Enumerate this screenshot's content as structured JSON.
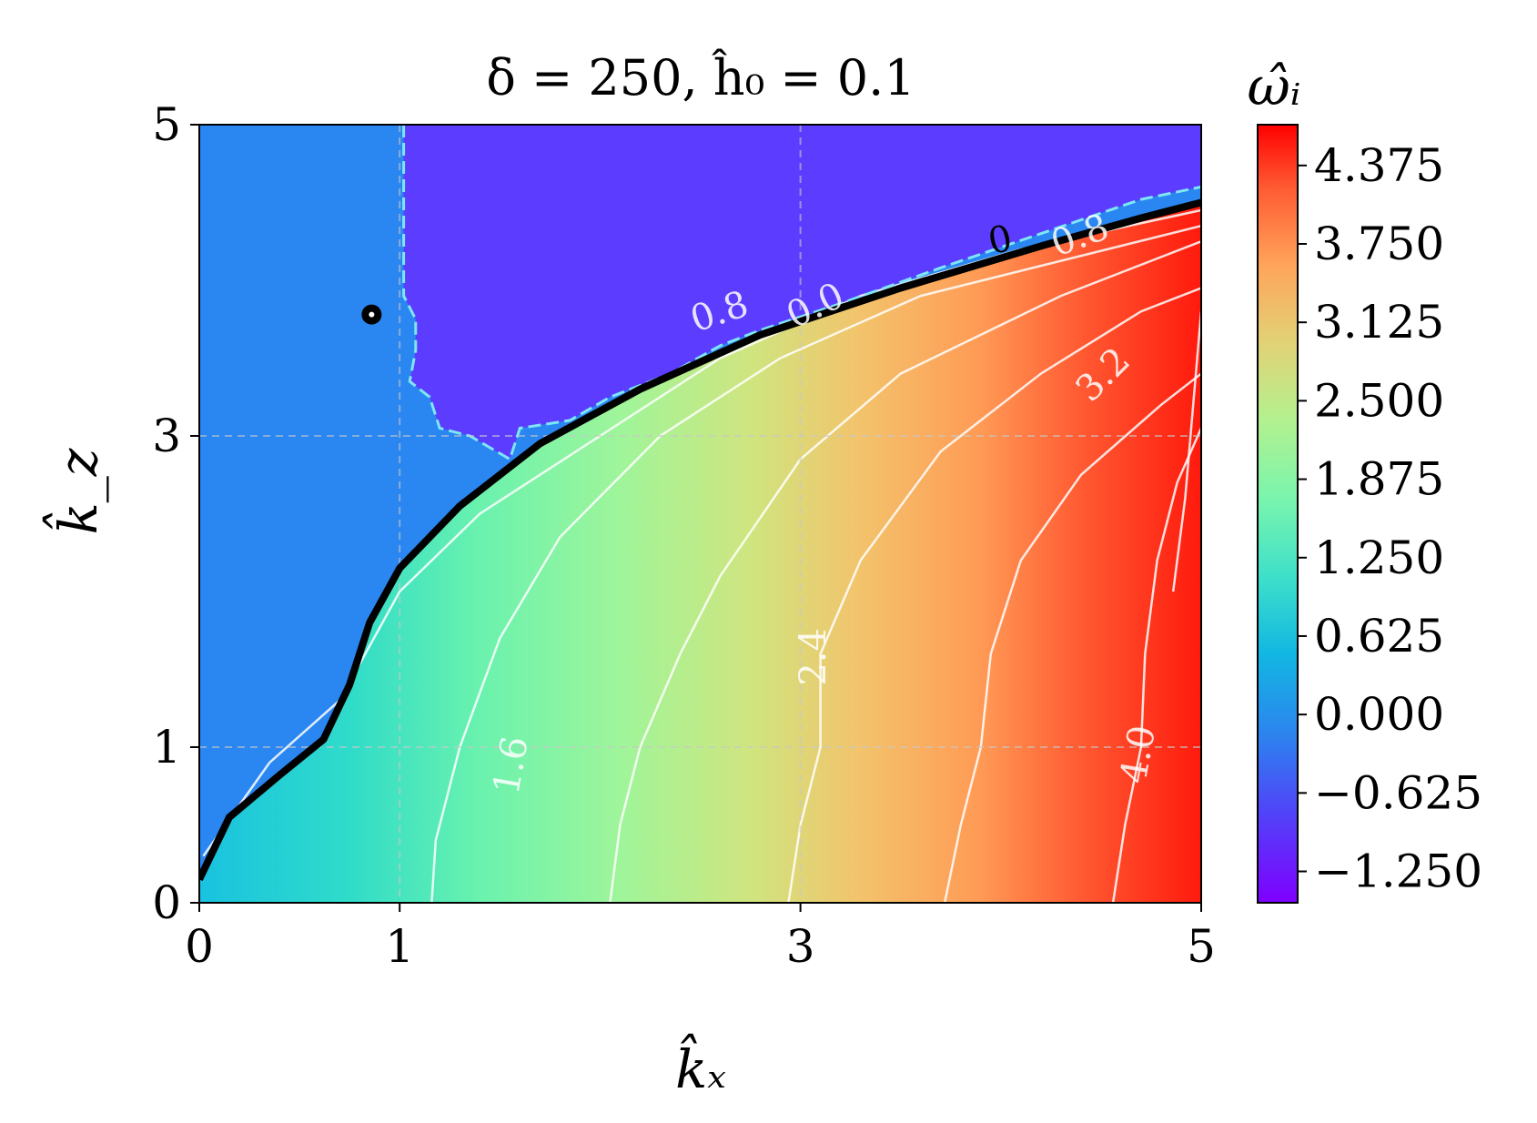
{
  "chart_data": {
    "type": "heatmap",
    "title": "δ = 250, ĥ₀ = 0.1",
    "xlabel": "k̂ₓ",
    "ylabel": "k̂_z",
    "colorbar_label": "ω̂ᵢ",
    "colormap": "rainbow",
    "xlim": [
      0,
      5
    ],
    "ylim": [
      0,
      5
    ],
    "x_ticks": [
      0,
      1,
      3,
      5
    ],
    "y_ticks": [
      0,
      1,
      3,
      5
    ],
    "grid": true,
    "color_range": [
      -1.5,
      4.7
    ],
    "colorbar_ticks": [
      "4.375",
      "3.750",
      "3.125",
      "2.500",
      "1.875",
      "1.250",
      "0.625",
      "0.000",
      "−0.625",
      "−1.250"
    ],
    "colorbar_tick_values": [
      4.375,
      3.75,
      3.125,
      2.5,
      1.875,
      1.25,
      0.625,
      0.0,
      -0.625,
      -1.25
    ],
    "contour_levels": [
      -0.8,
      0.0,
      0.8,
      1.6,
      2.4,
      3.2,
      4.0
    ],
    "contour_labels": [
      {
        "text": "0.8",
        "x": 2.6,
        "y": 3.78,
        "angle": -18,
        "level": 0.8
      },
      {
        "text": "0.0",
        "x": 3.08,
        "y": 3.82,
        "angle": -25,
        "level": 0.0
      },
      {
        "text": "0",
        "x": 4.0,
        "y": 4.24,
        "angle": -12,
        "level": 0.0
      },
      {
        "text": "0.8",
        "x": 4.4,
        "y": 4.27,
        "angle": -20,
        "level": 0.8
      },
      {
        "text": "1.6",
        "x": 1.57,
        "y": 0.88,
        "angle": -80,
        "level": 1.6
      },
      {
        "text": "2.4",
        "x": 3.08,
        "y": 1.58,
        "angle": -90,
        "level": 2.4
      },
      {
        "text": "3.2",
        "x": 4.52,
        "y": 3.38,
        "angle": -45,
        "level": 3.2
      },
      {
        "text": "4.0",
        "x": 4.7,
        "y": 0.95,
        "angle": -80,
        "level": 4.0
      }
    ],
    "zero_contour": [
      [
        0.0,
        0.15
      ],
      [
        0.15,
        0.55
      ],
      [
        0.4,
        0.82
      ],
      [
        0.62,
        1.05
      ],
      [
        0.75,
        1.4
      ],
      [
        0.85,
        1.8
      ],
      [
        1.0,
        2.15
      ],
      [
        1.3,
        2.55
      ],
      [
        1.7,
        2.95
      ],
      [
        2.2,
        3.3
      ],
      [
        2.8,
        3.65
      ],
      [
        3.5,
        3.95
      ],
      [
        4.2,
        4.22
      ],
      [
        4.7,
        4.4
      ],
      [
        5.0,
        4.5
      ]
    ],
    "isolines": [
      {
        "level": 0.8,
        "points": [
          [
            0.02,
            0.3
          ],
          [
            0.35,
            0.9
          ],
          [
            0.7,
            1.3
          ],
          [
            1.0,
            2.0
          ],
          [
            1.4,
            2.5
          ],
          [
            2.0,
            3.0
          ],
          [
            2.6,
            3.5
          ],
          [
            3.3,
            3.9
          ],
          [
            4.1,
            4.2
          ],
          [
            5.0,
            4.45
          ]
        ]
      },
      {
        "level": 1.6,
        "points": [
          [
            1.16,
            0.0
          ],
          [
            1.18,
            0.4
          ],
          [
            1.3,
            1.0
          ],
          [
            1.5,
            1.7
          ],
          [
            1.8,
            2.35
          ],
          [
            2.3,
            3.0
          ],
          [
            2.9,
            3.5
          ],
          [
            3.6,
            3.9
          ],
          [
            5.0,
            4.35
          ]
        ]
      },
      {
        "level": 2.4,
        "points": [
          [
            2.05,
            0.0
          ],
          [
            2.1,
            0.5
          ],
          [
            2.2,
            1.0
          ],
          [
            2.4,
            1.6
          ],
          [
            2.6,
            2.1
          ],
          [
            3.0,
            2.85
          ],
          [
            3.5,
            3.4
          ],
          [
            4.3,
            3.9
          ],
          [
            5.0,
            4.25
          ]
        ]
      },
      {
        "level": 3.2,
        "points": [
          [
            2.94,
            0.0
          ],
          [
            3.0,
            0.5
          ],
          [
            3.1,
            1.0
          ],
          [
            3.1,
            1.6
          ],
          [
            3.3,
            2.2
          ],
          [
            3.7,
            2.9
          ],
          [
            4.2,
            3.4
          ],
          [
            4.7,
            3.8
          ],
          [
            5.0,
            3.95
          ]
        ]
      },
      {
        "level": 4.0,
        "points": [
          [
            3.72,
            0.0
          ],
          [
            3.8,
            0.5
          ],
          [
            3.9,
            1.0
          ],
          [
            3.95,
            1.6
          ],
          [
            4.1,
            2.2
          ],
          [
            4.4,
            2.75
          ],
          [
            4.8,
            3.2
          ],
          [
            5.0,
            3.4
          ]
        ]
      },
      {
        "level": 4.4,
        "points": [
          [
            4.56,
            0.0
          ],
          [
            4.62,
            0.5
          ],
          [
            4.7,
            1.0
          ],
          [
            4.72,
            1.6
          ],
          [
            4.78,
            2.2
          ],
          [
            4.88,
            2.7
          ],
          [
            5.0,
            3.05
          ]
        ]
      },
      {
        "level": 4.6,
        "points": [
          [
            4.86,
            2.0
          ],
          [
            4.92,
            2.6
          ],
          [
            5.0,
            3.8
          ]
        ]
      }
    ],
    "dashed_contour": [
      [
        1.02,
        5.0
      ],
      [
        1.02,
        3.9
      ],
      [
        1.08,
        3.75
      ],
      [
        1.08,
        3.55
      ],
      [
        1.05,
        3.35
      ],
      [
        1.15,
        3.25
      ],
      [
        1.2,
        3.05
      ],
      [
        1.35,
        3.0
      ],
      [
        1.55,
        2.85
      ],
      [
        1.6,
        3.05
      ],
      [
        1.85,
        3.1
      ],
      [
        2.05,
        3.25
      ],
      [
        2.35,
        3.4
      ],
      [
        2.6,
        3.58
      ],
      [
        2.8,
        3.68
      ],
      [
        3.2,
        3.85
      ],
      [
        3.7,
        4.08
      ],
      [
        4.2,
        4.3
      ],
      [
        4.7,
        4.52
      ],
      [
        5.0,
        4.6
      ]
    ],
    "markers": [
      {
        "x": 0.86,
        "y": 3.78
      }
    ]
  }
}
